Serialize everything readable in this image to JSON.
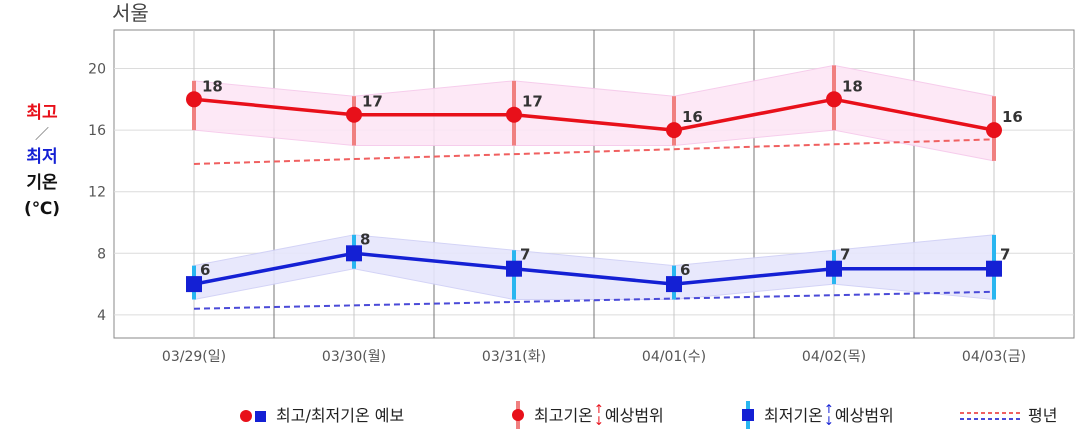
{
  "chart_data": {
    "type": "line",
    "title": "서울",
    "categories": [
      "03/29(일)",
      "03/30(월)",
      "03/31(화)",
      "04/01(수)",
      "04/02(목)",
      "04/03(금)"
    ],
    "ylabel": {
      "high": "최고",
      "sep": "／",
      "low": "최저",
      "line3": "기온",
      "line4": "(℃)"
    },
    "ylim": [
      2.5,
      22.5
    ],
    "yticks": [
      4,
      8,
      12,
      16,
      20
    ],
    "grid": true,
    "series": [
      {
        "name": "최고기온",
        "color": "#e8101a",
        "values": [
          18,
          17,
          17,
          16,
          18,
          16
        ],
        "range_low": [
          16,
          15,
          15,
          15,
          16,
          14
        ],
        "range_high": [
          19.2,
          18.2,
          19.2,
          18.2,
          20.2,
          18.2
        ]
      },
      {
        "name": "최저기온",
        "color": "#1420d4",
        "values": [
          6,
          8,
          7,
          6,
          7,
          7
        ],
        "range_low": [
          5,
          7,
          5,
          5,
          6,
          5
        ],
        "range_high": [
          7.2,
          9.2,
          8.2,
          7.2,
          8.2,
          9.2
        ]
      }
    ],
    "normal_high": [
      13.8,
      15.4
    ],
    "normal_low": [
      4.4,
      5.5
    ],
    "legend": {
      "forecast": "최고/최저기온 예보",
      "high_range_a": "최고기온",
      "high_range_b": "예상범위",
      "low_range_a": "최저기온",
      "low_range_b": "예상범위",
      "normal": "평년"
    },
    "legend_placement": "bottom",
    "colors": {
      "high_band": "#fde6f6",
      "low_band": "#e6e6fc",
      "high_range_bar": "#f08080",
      "low_range_bar": "#29b6f0",
      "normal_high": "#f06060",
      "normal_low": "#4a4ad8"
    }
  }
}
